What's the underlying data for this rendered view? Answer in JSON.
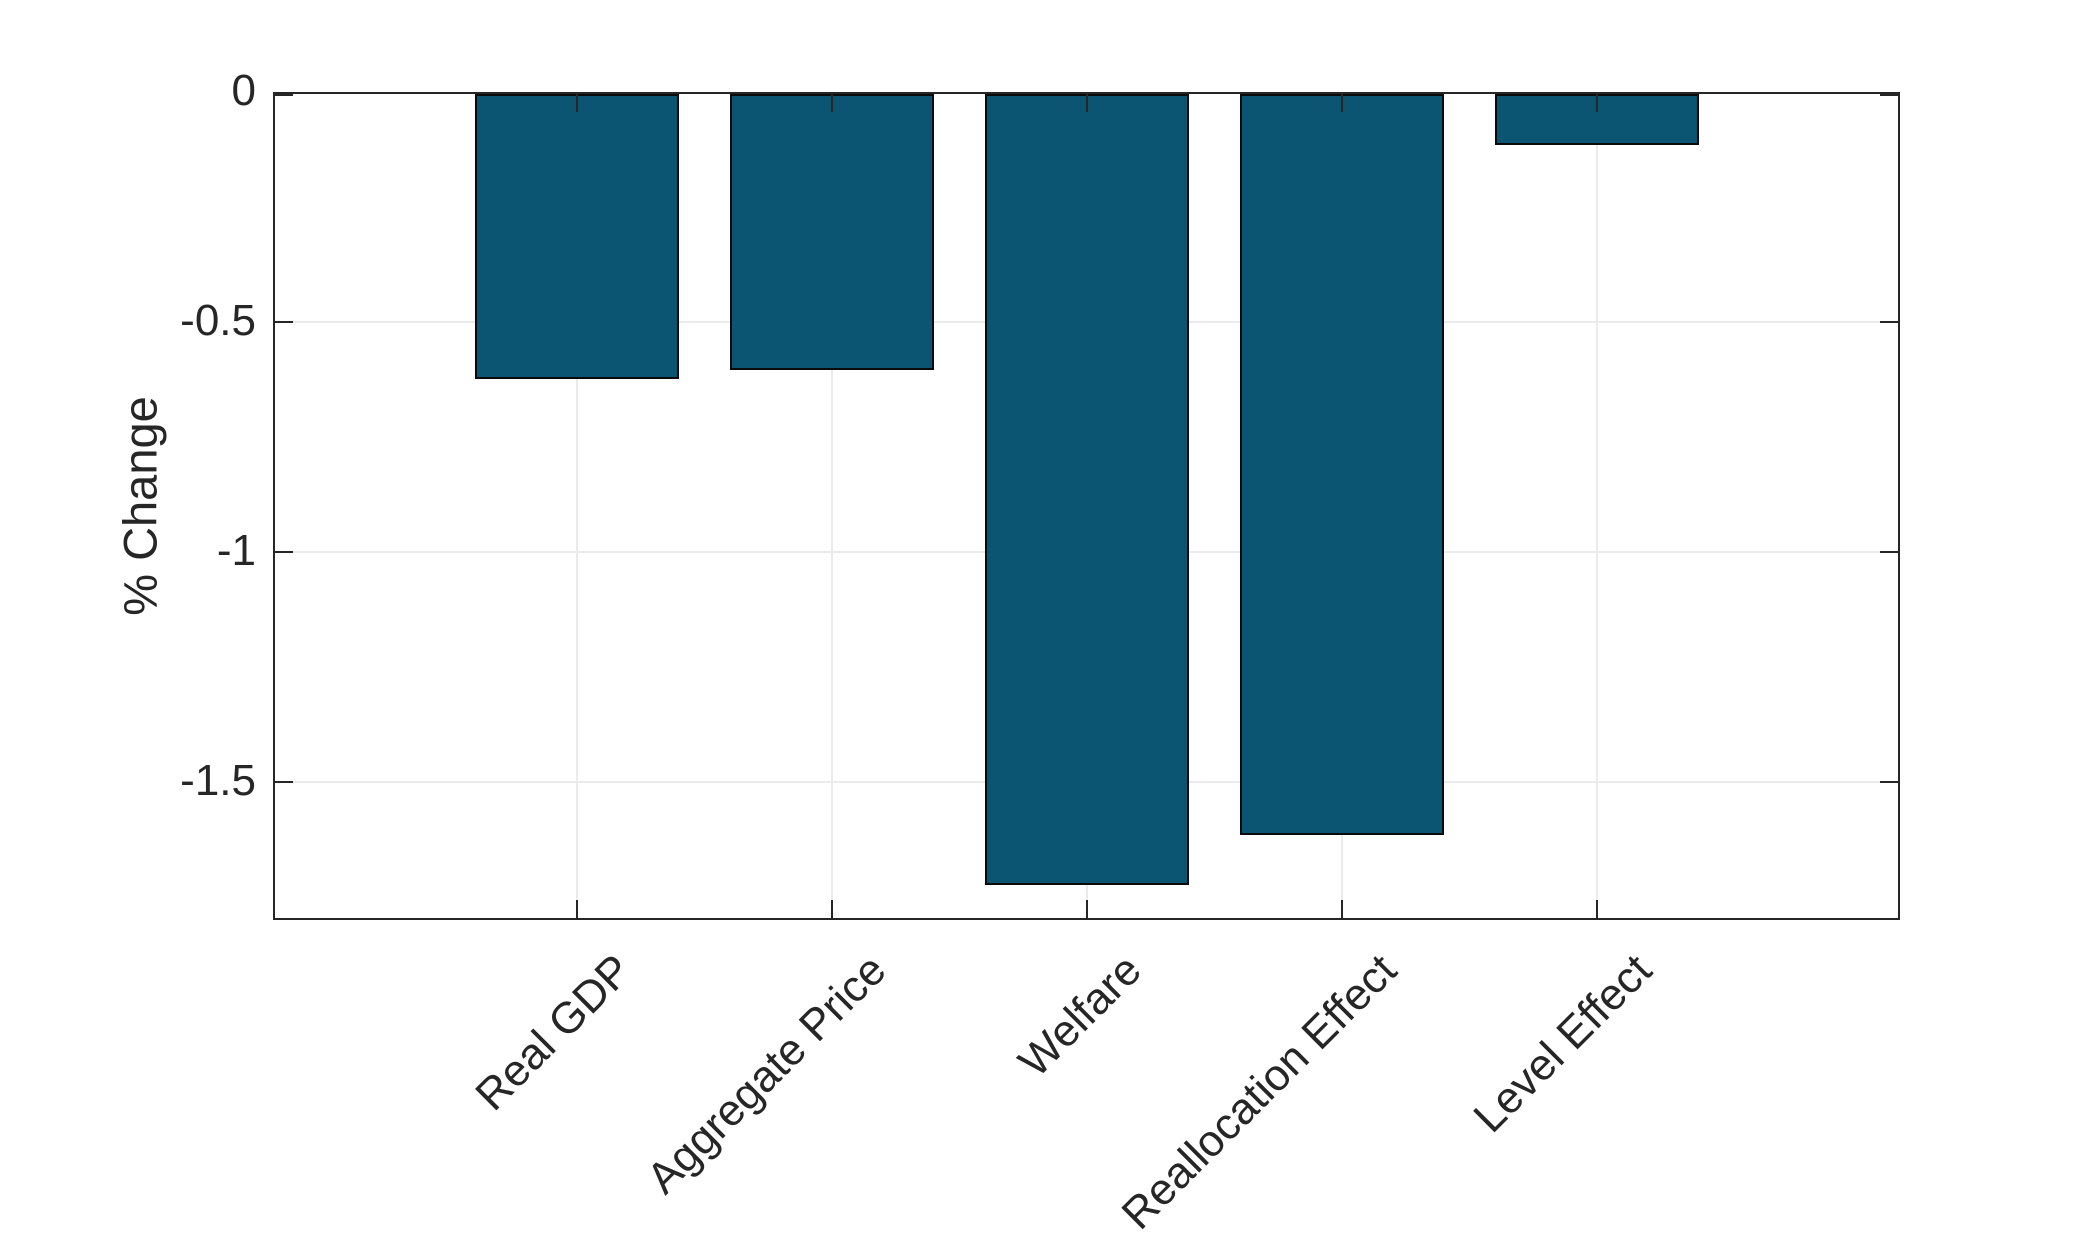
{
  "chart_data": {
    "type": "bar",
    "title": "",
    "xlabel": "",
    "ylabel": "% Change",
    "categories": [
      "Real GDP",
      "Aggregate Price",
      "Welfare",
      "Reallocation Effect",
      "Level Effect"
    ],
    "values": [
      -0.62,
      -0.6,
      -1.72,
      -1.61,
      -0.11
    ],
    "ylim": [
      -1.8,
      0
    ],
    "yticks": [
      0,
      -0.5,
      -1,
      -1.5
    ],
    "ytick_labels": [
      "0",
      "-0.5",
      "-1",
      "-1.5"
    ],
    "grid": "on",
    "legend": "none",
    "xtick_angle_deg": 45,
    "bar_color": "#0B5572",
    "bar_edge_color": "#0a0a0a",
    "axis_color": "#262626",
    "text_color": "#262626",
    "grid_color": "#EBEBEB",
    "background_color": "#ffffff"
  }
}
